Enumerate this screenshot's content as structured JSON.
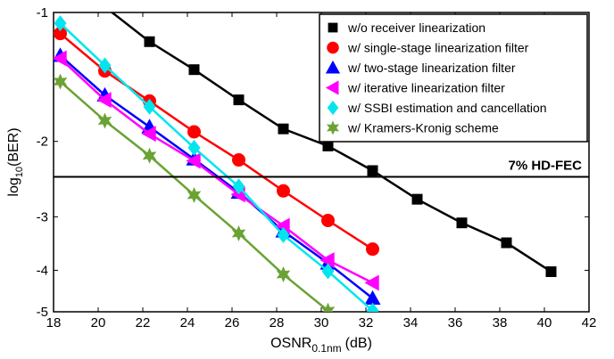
{
  "chart_data": {
    "type": "line",
    "xlabel": {
      "main": "OSNR",
      "sub": "0.1nm",
      "unit": "(dB)"
    },
    "ylabel": {
      "main": "log",
      "sub": "10",
      "rest": "(BER)"
    },
    "xlim": [
      18,
      42
    ],
    "x_ticks": [
      18,
      20,
      22,
      24,
      26,
      28,
      30,
      32,
      34,
      36,
      38,
      40,
      42
    ],
    "y_scale": "log10",
    "ylim": [
      -5,
      -1
    ],
    "y_ticks": [
      -1,
      -2,
      -3,
      -4,
      -5
    ],
    "grid": false,
    "legend_position": "top-right",
    "threshold": {
      "label": "7% HD-FEC",
      "value": -2.42
    },
    "series": [
      {
        "name": "w/o receiver linearization",
        "color": "#000000",
        "marker": "square",
        "x": [
          18.3,
          20.3,
          22.3,
          24.3,
          26.3,
          28.3,
          30.3,
          32.3,
          34.3,
          36.3,
          38.3,
          40.3
        ],
        "y": [
          -0.82,
          -0.97,
          -1.17,
          -1.36,
          -1.6,
          -1.87,
          -2.05,
          -2.34,
          -2.73,
          -3.1,
          -3.45,
          -4.03
        ]
      },
      {
        "name": "w/ single-stage linearization filter",
        "color": "#ff0000",
        "marker": "circle",
        "x": [
          18.3,
          20.3,
          22.3,
          24.3,
          26.3,
          28.3,
          30.3,
          32.3
        ],
        "y": [
          -1.12,
          -1.37,
          -1.61,
          -1.9,
          -2.21,
          -2.61,
          -3.06,
          -3.57
        ]
      },
      {
        "name": "w/ two-stage linearization filter",
        "color": "#0000ff",
        "marker": "triangle-up",
        "x": [
          18.3,
          20.3,
          22.3,
          24.3,
          26.3,
          28.3,
          30.3,
          32.3
        ],
        "y": [
          -1.26,
          -1.56,
          -1.85,
          -2.2,
          -2.63,
          -3.24,
          -3.85,
          -4.65
        ]
      },
      {
        "name": "w/ iterative linearization filter",
        "color": "#ff00ff",
        "marker": "triangle-left",
        "x": [
          18.3,
          20.3,
          22.3,
          24.3,
          26.3,
          28.3,
          30.3,
          32.3
        ],
        "y": [
          -1.28,
          -1.6,
          -1.92,
          -2.22,
          -2.66,
          -3.15,
          -3.79,
          -4.28
        ]
      },
      {
        "name": "w/ SSBI estimation and cancellation",
        "color": "#00e5ee",
        "marker": "diamond",
        "x": [
          18.3,
          20.3,
          22.3,
          24.3,
          26.3,
          28.3,
          30.3,
          32.3
        ],
        "y": [
          -1.06,
          -1.33,
          -1.66,
          -2.07,
          -2.55,
          -3.31,
          -4.02,
          -4.97
        ]
      },
      {
        "name": "w/ Kramers-Kronig scheme",
        "color": "#6aa334",
        "marker": "hexagram",
        "x": [
          18.3,
          20.3,
          22.3,
          24.3,
          26.3,
          28.3,
          30.3
        ],
        "y": [
          -1.45,
          -1.79,
          -2.16,
          -2.67,
          -3.28,
          -4.09,
          -4.97
        ]
      }
    ]
  }
}
